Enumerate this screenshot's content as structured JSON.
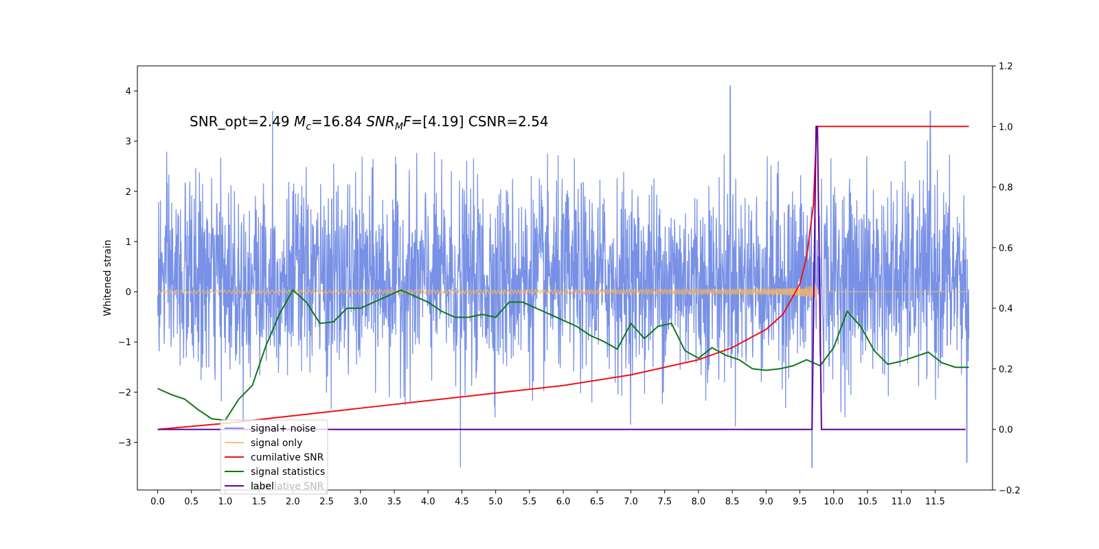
{
  "chart_data": {
    "type": "line",
    "title": "",
    "annotation": {
      "part1": "SNR_opt=2.49   ",
      "mc_symbol": "M",
      "mc_sub": "c",
      "part2": "=16.84  ",
      "snr_symbol": "SNR",
      "snr_sub": "M",
      "snr_f": "F",
      "part3": "=[4.19]   CSNR=2.54"
    },
    "xlabel": "",
    "ylabel": "Whitened strain",
    "x_ticks": [
      "0.0",
      "0.5",
      "1.0",
      "1.5",
      "2.0",
      "2.5",
      "3.0",
      "3.5",
      "4.0",
      "4.5",
      "5.0",
      "5.5",
      "6.0",
      "6.5",
      "7.0",
      "7.5",
      "8.0",
      "8.5",
      "9.0",
      "9.5",
      "10.0",
      "10.5",
      "11.0",
      "11.5"
    ],
    "xlim": [
      -0.3,
      12.35
    ],
    "ylim_left": [
      -3.95,
      4.5
    ],
    "y_ticks_left": [
      "4",
      "3",
      "2",
      "1",
      "0",
      "−1",
      "−2",
      "−3"
    ],
    "ylim_right": [
      -0.2,
      1.2
    ],
    "y_ticks_right": [
      "1.2",
      "1.0",
      "0.8",
      "0.6",
      "0.4",
      "0.2",
      "0.0",
      "−0.2"
    ],
    "grid": false,
    "legend_placement": "lower-left",
    "series": [
      {
        "name": "signal+ noise",
        "axis": "left",
        "color": "#4466dd",
        "x_range": [
          0,
          12.0
        ],
        "description_values": {
          "typical_band": [
            -2.0,
            2.5
          ],
          "peaks": [
            [
              1.7,
              3.6
            ],
            [
              8.47,
              4.1
            ],
            [
              11.43,
              3.6
            ],
            [
              4.48,
              -3.5
            ],
            [
              9.68,
              -3.5
            ],
            [
              11.97,
              -3.4
            ]
          ]
        }
      },
      {
        "name": "signal only",
        "axis": "left",
        "color": "#f5b561",
        "chirp_end": 9.75,
        "amplitude_end": 0.22
      },
      {
        "name": "cumilative SNR",
        "axis": "right",
        "color": "#ee1111",
        "x": [
          0.0,
          1.0,
          2.0,
          3.0,
          4.0,
          5.0,
          6.0,
          7.0,
          8.0,
          8.5,
          9.0,
          9.25,
          9.5,
          9.6,
          9.7,
          9.75,
          12.0
        ],
        "values": [
          0.0,
          0.02,
          0.045,
          0.07,
          0.095,
          0.12,
          0.145,
          0.18,
          0.23,
          0.27,
          0.33,
          0.38,
          0.48,
          0.57,
          0.74,
          1.0,
          1.0
        ]
      },
      {
        "name": "signal statistics",
        "axis": "right",
        "color": "#117711",
        "x": [
          0.0,
          0.2,
          0.4,
          0.6,
          0.8,
          1.0,
          1.2,
          1.4,
          1.6,
          1.8,
          2.0,
          2.2,
          2.4,
          2.6,
          2.8,
          3.0,
          3.2,
          3.4,
          3.6,
          3.8,
          4.0,
          4.2,
          4.4,
          4.6,
          4.8,
          5.0,
          5.2,
          5.4,
          5.6,
          5.8,
          6.0,
          6.2,
          6.4,
          6.6,
          6.8,
          7.0,
          7.2,
          7.4,
          7.6,
          7.8,
          8.0,
          8.2,
          8.4,
          8.6,
          8.8,
          9.0,
          9.2,
          9.4,
          9.6,
          9.8,
          10.0,
          10.2,
          10.4,
          10.6,
          10.8,
          11.0,
          11.2,
          11.4,
          11.6,
          11.8,
          12.0
        ],
        "values": [
          0.135,
          0.115,
          0.1,
          0.065,
          0.035,
          0.03,
          0.1,
          0.145,
          0.275,
          0.38,
          0.46,
          0.42,
          0.35,
          0.355,
          0.4,
          0.4,
          0.42,
          0.44,
          0.46,
          0.44,
          0.42,
          0.39,
          0.37,
          0.37,
          0.38,
          0.37,
          0.42,
          0.42,
          0.4,
          0.38,
          0.36,
          0.34,
          0.31,
          0.29,
          0.265,
          0.35,
          0.3,
          0.34,
          0.35,
          0.26,
          0.235,
          0.27,
          0.245,
          0.23,
          0.2,
          0.195,
          0.2,
          0.21,
          0.23,
          0.21,
          0.27,
          0.39,
          0.34,
          0.26,
          0.215,
          0.225,
          0.24,
          0.255,
          0.22,
          0.205,
          0.205
        ]
      },
      {
        "name": "label",
        "axis": "right",
        "color": "#660099",
        "x": [
          0.0,
          9.68,
          9.74,
          9.76,
          9.82,
          11.95
        ],
        "values": [
          0.0,
          0.0,
          1.0,
          1.0,
          0.0,
          0.0
        ]
      }
    ],
    "legend_ghost_text": "cumilative SNR"
  }
}
